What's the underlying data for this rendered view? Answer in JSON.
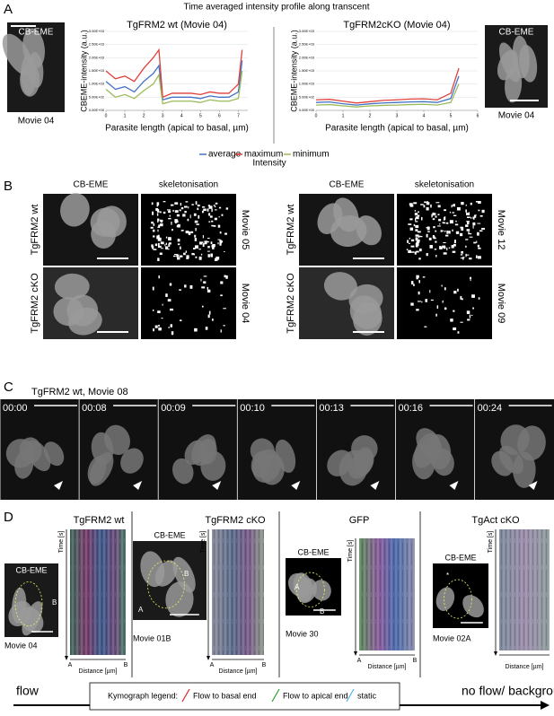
{
  "panel_a": {
    "label": "A",
    "title": "Time averaged intensity profile along transcent",
    "left_image": {
      "caption": "CB-EME",
      "movie": "Movie 04"
    },
    "right_image": {
      "caption": "CB-EME",
      "movie": "Movie 04"
    },
    "charts": [
      {
        "title": "TgFRM2 wt (Movie 04)",
        "ylabel": "CBEME-intensity (a.u.)",
        "xlabel": "Parasite length (apical to basal, µm)",
        "xlim": [
          0,
          7.5
        ],
        "ylim": [
          0,
          3000
        ],
        "xticks": [
          0,
          1,
          2,
          3,
          4,
          5,
          6,
          7
        ],
        "yticks": [
          {
            "value": 0,
            "label": "0.00E+00"
          },
          {
            "value": 500,
            "label": "5.00E+02"
          },
          {
            "value": 1000,
            "label": "1.00E+03"
          },
          {
            "value": 1500,
            "label": "1.50E+03"
          },
          {
            "value": 2000,
            "label": "2.00E+03"
          },
          {
            "value": 2500,
            "label": "2.50E+03"
          },
          {
            "value": 3000,
            "label": "3.00E+03"
          }
        ],
        "x": [
          0,
          0.5,
          1,
          1.5,
          2,
          2.5,
          2.8,
          3,
          3.5,
          4,
          4.5,
          5,
          5.5,
          6,
          6.5,
          7,
          7.2
        ],
        "series": [
          {
            "color": "#4472c4",
            "values": [
              1100,
              800,
              900,
              700,
              1100,
              1400,
              1700,
              400,
              500,
              500,
              500,
              450,
              550,
              500,
              500,
              700,
              1900
            ]
          },
          {
            "color": "#e0413b",
            "values": [
              1500,
              1200,
              1300,
              1100,
              1600,
              2000,
              2300,
              500,
              650,
              650,
              650,
              600,
              700,
              650,
              650,
              1000,
              2300
            ]
          },
          {
            "color": "#9bbb59",
            "values": [
              800,
              500,
              600,
              450,
              750,
              1000,
              1350,
              250,
              350,
              350,
              350,
              300,
              400,
              350,
              350,
              450,
              1500
            ]
          }
        ]
      },
      {
        "title": "TgFRM2cKO (Movie 04)",
        "ylabel": "CBEME-intensity (a.u.)",
        "xlabel": "Parasite length (apical to basal, µm)",
        "xlim": [
          0,
          6
        ],
        "ylim": [
          0,
          3000
        ],
        "xticks": [
          0,
          1,
          2,
          3,
          4,
          5,
          6
        ],
        "yticks": [
          {
            "value": 0,
            "label": "0.00E+00"
          },
          {
            "value": 500,
            "label": "5.00E+02"
          },
          {
            "value": 1000,
            "label": "1.00E+03"
          },
          {
            "value": 1500,
            "label": "1.50E+03"
          },
          {
            "value": 2000,
            "label": "2.00E+03"
          },
          {
            "value": 2500,
            "label": "2.50E+03"
          },
          {
            "value": 3000,
            "label": "3.00E+03"
          }
        ],
        "x": [
          0,
          0.5,
          1,
          1.5,
          2,
          2.5,
          3,
          3.5,
          4,
          4.5,
          5,
          5.3
        ],
        "series": [
          {
            "color": "#4472c4",
            "values": [
              300,
              320,
              250,
              200,
              250,
              280,
              300,
              320,
              330,
              300,
              450,
              1300
            ]
          },
          {
            "color": "#e0413b",
            "values": [
              400,
              420,
              350,
              280,
              330,
              380,
              400,
              430,
              440,
              400,
              650,
              1600
            ]
          },
          {
            "color": "#9bbb59",
            "values": [
              200,
              220,
              170,
              130,
              170,
              190,
              200,
              220,
              230,
              200,
              300,
              1000
            ]
          }
        ]
      }
    ],
    "legend": {
      "entries": [
        {
          "name": "average",
          "color": "#4472c4"
        },
        {
          "name": "maximum",
          "color": "#e0413b"
        },
        {
          "name": "minimum",
          "color": "#9bbb59"
        }
      ],
      "caption": "Intensity"
    }
  },
  "panel_b": {
    "label": "B",
    "groups": [
      {
        "columns": [
          "CB-EME",
          "skeletonisation"
        ],
        "rows": [
          {
            "label": "TgFRM2 wt",
            "movie": "Movie 05"
          },
          {
            "label": "TgFRM2 cKO",
            "movie": "Movie 04"
          }
        ]
      },
      {
        "columns": [
          "CB-EME",
          "skeletonisation"
        ],
        "rows": [
          {
            "label": "TgFRM2 wt",
            "movie": "Movie 12"
          },
          {
            "label": "TgFRM2 cKO",
            "movie": "Movie 09"
          }
        ]
      }
    ]
  },
  "panel_c": {
    "label": "C",
    "title": "TgFRM2 wt, Movie 08",
    "timestamps": [
      "00:00",
      "00:08",
      "00:09",
      "00:10",
      "00:13",
      "00:16",
      "00:24"
    ]
  },
  "panel_d": {
    "label": "D",
    "groups": [
      {
        "title": "TgFRM2 wt",
        "image_label": "CB-EME",
        "movie": "Movie 04",
        "image_marks": [
          "B",
          "A"
        ],
        "time_axis": "Time [s]",
        "distance_axis": "Distance [µm]",
        "ends": [
          "A",
          "B"
        ]
      },
      {
        "title": "TgFRM2 cKO",
        "image_label": "CB-EME",
        "movie": "Movie 01B",
        "image_marks": [
          "B",
          "A"
        ],
        "time_axis": "Time [s]",
        "distance_axis": "Distance [µm]",
        "ends": [
          "A",
          "B"
        ]
      },
      {
        "title": "GFP",
        "image_label": "CB-EME",
        "movie": "Movie 30",
        "image_marks": [
          "A",
          "B"
        ],
        "time_axis": "Time [s]",
        "distance_axis": "Distance [µm]",
        "ends": [
          "A",
          "B"
        ]
      },
      {
        "title": "TgAct cKO",
        "image_label": "CB-EME",
        "movie": "Movie 02A",
        "image_marks": [
          "*"
        ],
        "time_axis": "Time [s]",
        "distance_axis": "Distance [µm]"
      }
    ]
  },
  "flow_bar": {
    "start": "flow",
    "end": "no flow/ background",
    "legend_title": "Kymograph legend:",
    "entries": [
      {
        "label": "Flow to basal end",
        "color": "#d62728"
      },
      {
        "label": "Flow to apical end",
        "color": "#2ca02c"
      },
      {
        "label": "static",
        "color": "#4fb3e8"
      }
    ]
  }
}
